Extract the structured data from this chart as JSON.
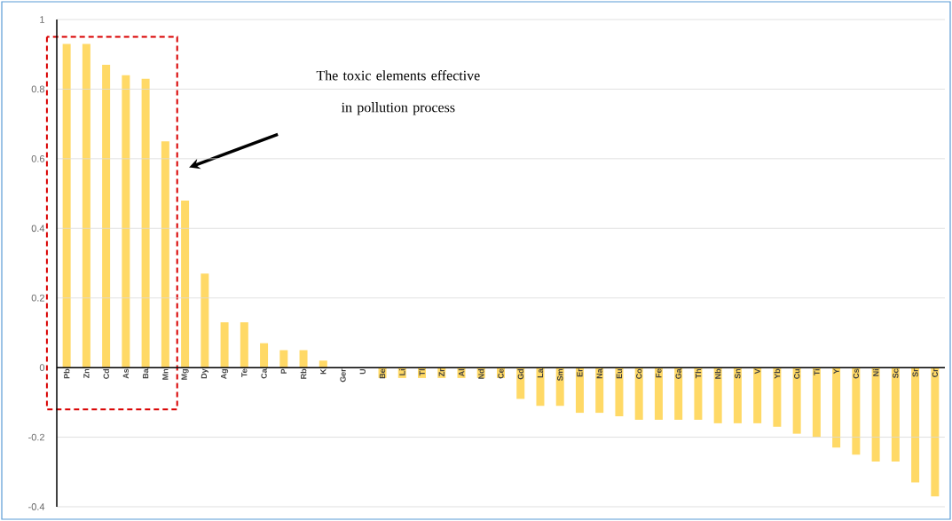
{
  "chart_data": {
    "type": "bar",
    "categories": [
      "Pb",
      "Zn",
      "Cd",
      "As",
      "Ba",
      "Mn",
      "Mg",
      "Dy",
      "Ag",
      "Te",
      "Ca",
      "P",
      "Rb",
      "K",
      "Ger",
      "U",
      "Be",
      "Li",
      "Tl",
      "Zr",
      "Al",
      "Nd",
      "Ce",
      "Gd",
      "La",
      "Sm",
      "Er",
      "Na",
      "Eu",
      "Co",
      "Fe",
      "Ga",
      "Th",
      "Nb",
      "Sn",
      "V",
      "Yb",
      "Cu",
      "Ti",
      "Y",
      "Cs",
      "Ni",
      "Sc",
      "Sr",
      "Cr"
    ],
    "values": [
      0.93,
      0.93,
      0.87,
      0.84,
      0.83,
      0.65,
      0.48,
      0.27,
      0.13,
      0.13,
      0.07,
      0.05,
      0.05,
      0.02,
      0,
      0,
      -0.03,
      -0.03,
      -0.03,
      -0.03,
      -0.03,
      -0.03,
      -0.03,
      -0.09,
      -0.11,
      -0.11,
      -0.13,
      -0.13,
      -0.14,
      -0.15,
      -0.15,
      -0.15,
      -0.15,
      -0.16,
      -0.16,
      -0.16,
      -0.17,
      -0.19,
      -0.2,
      -0.23,
      -0.25,
      -0.27,
      -0.27,
      -0.33,
      -0.37
    ],
    "color": "#ffd966",
    "ylim": [
      -0.4,
      1
    ],
    "yticks": [
      -0.4,
      -0.2,
      0,
      0.2,
      0.4,
      0.6,
      0.8,
      1
    ],
    "grid": "y",
    "annotations": [
      "The toxic elements effective in pollution process"
    ]
  }
}
